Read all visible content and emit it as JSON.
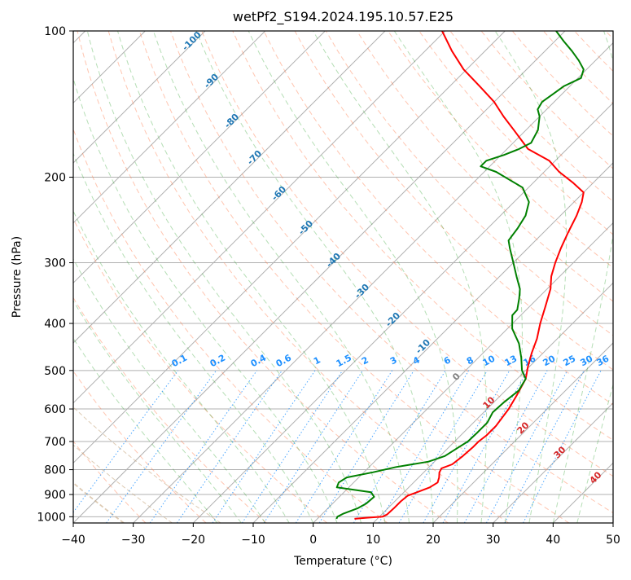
{
  "chart_data": {
    "type": "line",
    "subtype": "skew-t log-p diagram",
    "title": "wetPf2_S194.2024.195.10.57.E25",
    "xlabel": "Temperature (°C)",
    "ylabel": "Pressure (hPa)",
    "xlim": [
      -40,
      50
    ],
    "ylim": [
      1030,
      100
    ],
    "y_scale": "log",
    "grid": true,
    "x_ticks": [
      -40,
      -30,
      -20,
      -10,
      0,
      10,
      20,
      30,
      40,
      50
    ],
    "y_ticks": [
      100,
      200,
      300,
      400,
      500,
      600,
      700,
      800,
      900,
      1000
    ],
    "dry_adiabat_labels": [
      -100,
      -90,
      -80,
      -70,
      -60,
      -50,
      -40,
      -30,
      -20,
      -10
    ],
    "mixing_ratio_labels": [
      "0.1",
      "0.2",
      "0.4",
      "0.6",
      "1",
      "1.5",
      "2",
      "3",
      "4",
      "6",
      "8",
      "10",
      "13",
      "16",
      "20",
      "25",
      "30",
      "36"
    ],
    "moist_adiabat_labels": [
      "0",
      "10",
      "20",
      "30",
      "40"
    ],
    "series": [
      {
        "color": "#ff0000",
        "points": [
          [
            1010,
            6.2
          ],
          [
            1005,
            8.0
          ],
          [
            1000,
            10.5
          ],
          [
            990,
            10.9
          ],
          [
            960,
            11.0
          ],
          [
            930,
            11.0
          ],
          [
            905,
            11.2
          ],
          [
            890,
            12.2
          ],
          [
            870,
            13.5
          ],
          [
            850,
            14.0
          ],
          [
            830,
            13.4
          ],
          [
            810,
            12.6
          ],
          [
            795,
            12.3
          ],
          [
            780,
            13.4
          ],
          [
            750,
            13.8
          ],
          [
            720,
            14.0
          ],
          [
            700,
            14.0
          ],
          [
            680,
            14.3
          ],
          [
            650,
            14.3
          ],
          [
            600,
            13.6
          ],
          [
            560,
            12.6
          ],
          [
            520,
            11.4
          ],
          [
            490,
            9.7
          ],
          [
            460,
            8.1
          ],
          [
            430,
            6.6
          ],
          [
            400,
            4.6
          ],
          [
            370,
            2.7
          ],
          [
            340,
            0.6
          ],
          [
            320,
            -1.4
          ],
          [
            300,
            -3.0
          ],
          [
            280,
            -4.5
          ],
          [
            260,
            -5.9
          ],
          [
            240,
            -7.3
          ],
          [
            225,
            -8.7
          ],
          [
            215,
            -10.0
          ],
          [
            205,
            -13.5
          ],
          [
            195,
            -17.5
          ],
          [
            185,
            -21.0
          ],
          [
            175,
            -26.5
          ],
          [
            160,
            -32.0
          ],
          [
            150,
            -36.0
          ],
          [
            140,
            -40.0
          ],
          [
            130,
            -45.0
          ],
          [
            120,
            -50.5
          ],
          [
            110,
            -55.5
          ],
          [
            100,
            -60.5
          ]
        ]
      },
      {
        "color": "#008000",
        "points": [
          [
            1010,
            3.2
          ],
          [
            1000,
            3.0
          ],
          [
            985,
            3.5
          ],
          [
            960,
            5.0
          ],
          [
            940,
            5.6
          ],
          [
            910,
            5.8
          ],
          [
            890,
            4.5
          ],
          [
            870,
            -2.0
          ],
          [
            850,
            -2.5
          ],
          [
            830,
            -2.0
          ],
          [
            810,
            1.5
          ],
          [
            790,
            4.5
          ],
          [
            770,
            9.0
          ],
          [
            750,
            10.8
          ],
          [
            720,
            11.6
          ],
          [
            700,
            12.2
          ],
          [
            670,
            12.3
          ],
          [
            640,
            12.3
          ],
          [
            610,
            11.5
          ],
          [
            580,
            11.7
          ],
          [
            550,
            12.2
          ],
          [
            520,
            11.4
          ],
          [
            500,
            9.4
          ],
          [
            470,
            7.1
          ],
          [
            440,
            4.4
          ],
          [
            410,
            0.8
          ],
          [
            385,
            -1.4
          ],
          [
            375,
            -1.5
          ],
          [
            355,
            -3.1
          ],
          [
            340,
            -4.5
          ],
          [
            320,
            -7.2
          ],
          [
            300,
            -10.0
          ],
          [
            280,
            -13.0
          ],
          [
            270,
            -14.5
          ],
          [
            255,
            -15.0
          ],
          [
            240,
            -15.8
          ],
          [
            225,
            -17.5
          ],
          [
            210,
            -21.0
          ],
          [
            195,
            -28.0
          ],
          [
            190,
            -31.5
          ],
          [
            185,
            -31.5
          ],
          [
            180,
            -29.5
          ],
          [
            175,
            -28.0
          ],
          [
            170,
            -27.0
          ],
          [
            160,
            -28.0
          ],
          [
            150,
            -30.0
          ],
          [
            145,
            -31.5
          ],
          [
            140,
            -32.0
          ],
          [
            135,
            -31.5
          ],
          [
            130,
            -31.0
          ],
          [
            125,
            -29.5
          ],
          [
            120,
            -30.5
          ],
          [
            115,
            -32.8
          ],
          [
            110,
            -35.5
          ],
          [
            105,
            -38.5
          ],
          [
            100,
            -41.5
          ]
        ]
      }
    ]
  }
}
